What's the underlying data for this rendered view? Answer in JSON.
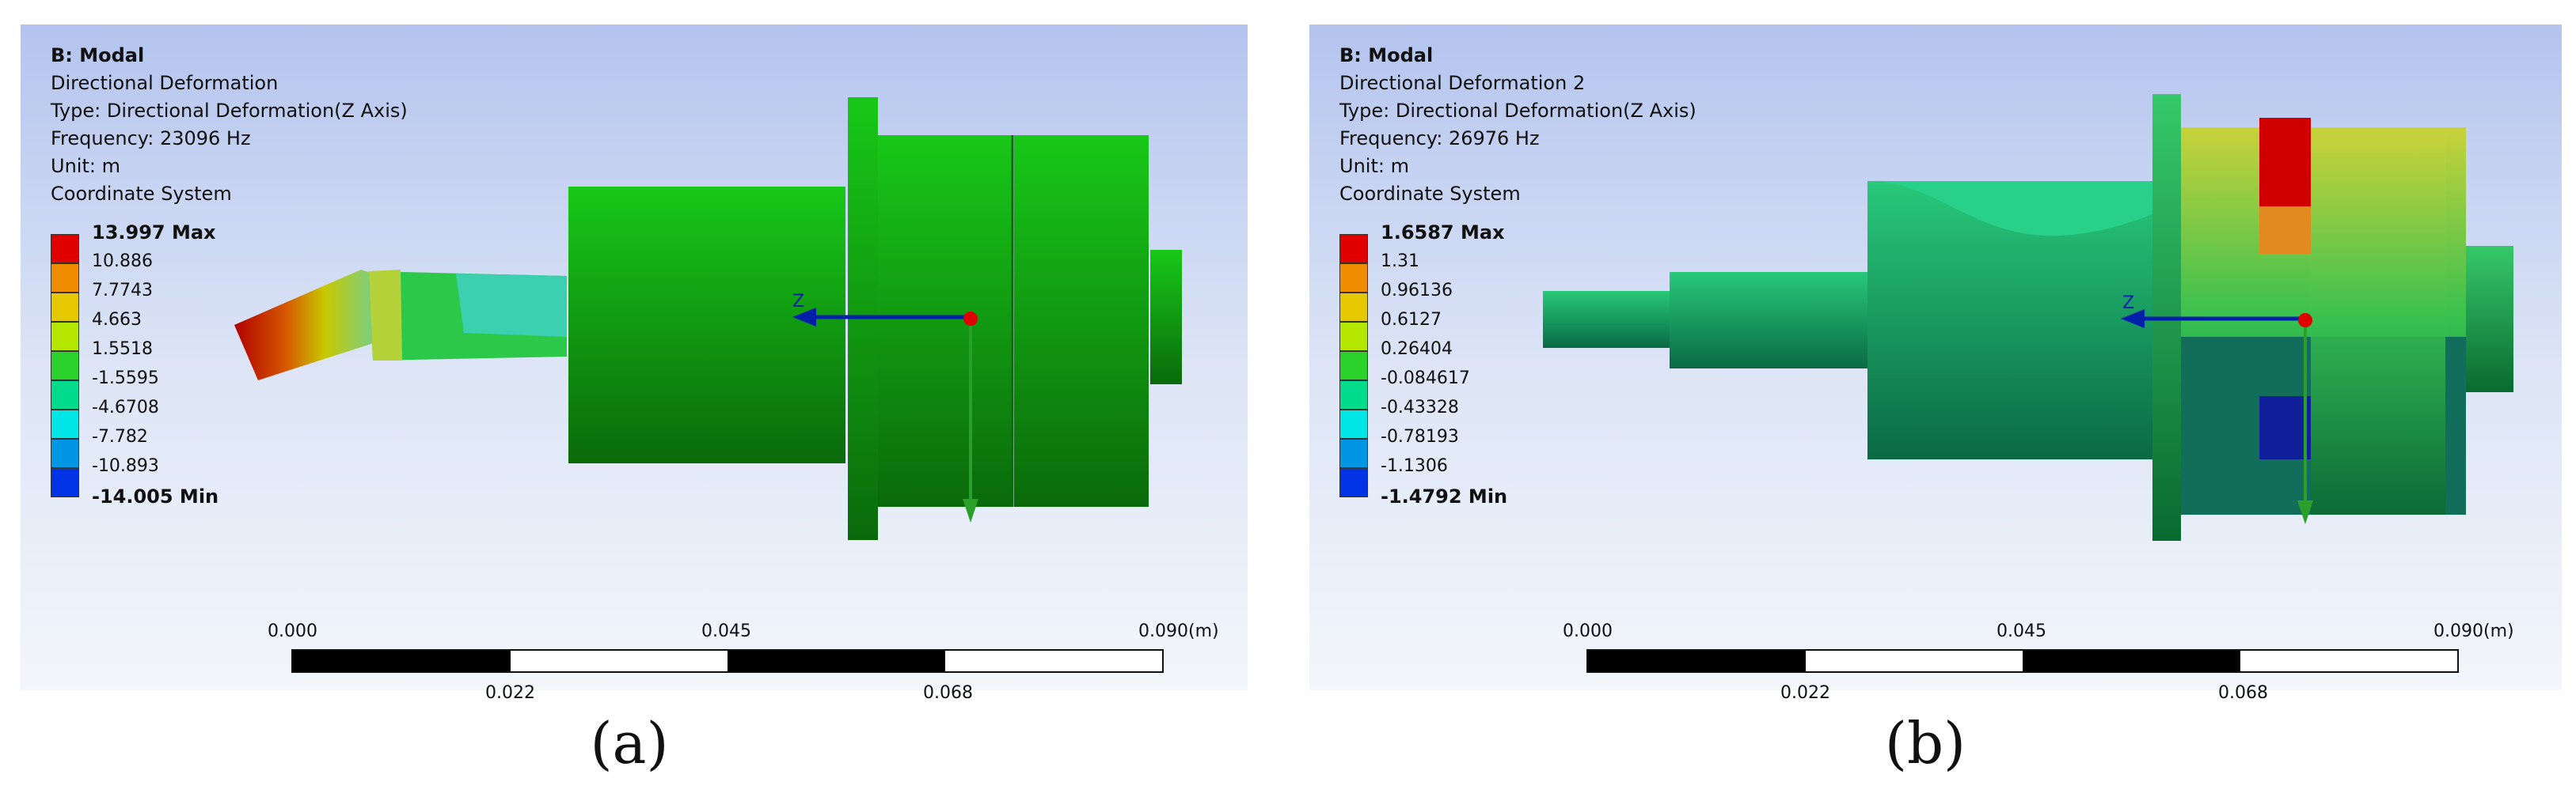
{
  "panels": [
    {
      "caption": "(a)",
      "title": "B: Modal",
      "result_name": "Directional Deformation",
      "type": "Type: Directional Deformation(Z Axis)",
      "frequency": "Frequency: 23096 Hz",
      "unit": "Unit: m",
      "coord_system": "Coordinate System",
      "legend": [
        "13.997 Max",
        "10.886",
        "7.7743",
        "4.663",
        "1.5518",
        "-1.5595",
        "-4.6708",
        "-7.782",
        "-10.893",
        "-14.005 Min"
      ],
      "axis_label": "Z",
      "scale_top": [
        "0.000",
        "0.045",
        "0.090"
      ],
      "scale_unit": "(m)",
      "scale_bottom": [
        "0.022",
        "0.068"
      ]
    },
    {
      "caption": "(b)",
      "title": "B: Modal",
      "result_name": "Directional Deformation 2",
      "type": "Type: Directional Deformation(Z Axis)",
      "frequency": "Frequency: 26976 Hz",
      "unit": "Unit: m",
      "coord_system": "Coordinate System",
      "legend": [
        "1.6587 Max",
        "1.31",
        "0.96136",
        "0.6127",
        "0.26404",
        "-0.084617",
        "-0.43328",
        "-0.78193",
        "-1.1306",
        "-1.4792 Min"
      ],
      "axis_label": "Z",
      "scale_top": [
        "0.000",
        "0.045",
        "0.090"
      ],
      "scale_unit": "(m)",
      "scale_bottom": [
        "0.022",
        "0.068"
      ]
    }
  ],
  "legend_colors": [
    "#e00000",
    "#f08c00",
    "#e6c800",
    "#b4e600",
    "#2cd22c",
    "#00dc8c",
    "#00e6e6",
    "#0096e6",
    "#0032e6"
  ]
}
